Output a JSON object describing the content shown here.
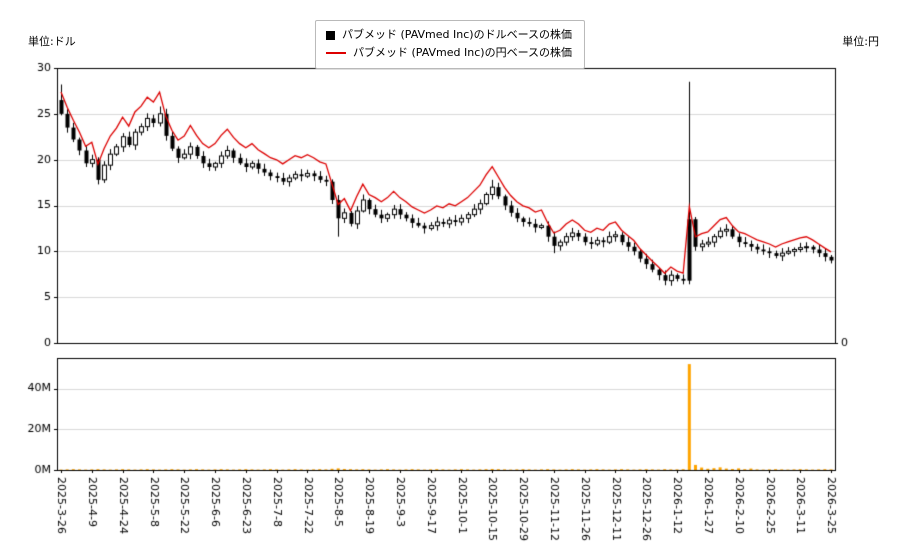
{
  "page": {
    "background": "#ffffff"
  },
  "header": {
    "left_unit_label": "単位:ドル",
    "right_unit_label": "単位:円"
  },
  "legend": {
    "items": [
      {
        "marker": "black-square",
        "color": "#000000",
        "label": "パブメッド (PAVmed Inc)のドルベースの株価"
      },
      {
        "marker": "red-line",
        "color": "#dd0000",
        "label": "パブメッド (PAVmed Inc)の円ベースの株価"
      }
    ]
  },
  "chart_data": {
    "type": "candlestick",
    "grid": {
      "on": true,
      "color": "#d9d9d9"
    },
    "legend_position": "top-center",
    "x_tick_labels": [
      "2025-3-26",
      "2025-4-9",
      "2025-4-24",
      "2025-5-8",
      "2025-5-22",
      "2025-6-6",
      "2025-6-23",
      "2025-7-8",
      "2025-7-22",
      "2025-8-5",
      "2025-8-19",
      "2025-9-3",
      "2025-9-17",
      "2025-10-1",
      "2025-10-15",
      "2025-10-29",
      "2025-11-12",
      "2025-11-26",
      "2025-12-11",
      "2025-12-26",
      "2026-1-12",
      "2026-1-27",
      "2026-2-10",
      "2026-2-25",
      "2026-3-11",
      "2026-3-25"
    ],
    "candles_per_tick": 5,
    "left_axis": {
      "unit": "ドル",
      "min": 0,
      "max": 30,
      "ticks": [
        0,
        5,
        10,
        15,
        20,
        25,
        30
      ]
    },
    "right_axis": {
      "unit": "円",
      "min": 0,
      "max": 4000,
      "ticks": [
        0,
        500,
        1000,
        1500,
        2000,
        2500,
        3000,
        3500,
        4000
      ]
    },
    "series": [
      {
        "name": "パブメッド (PAVmed Inc)のドルベースの株価",
        "type": "candlestick",
        "color": "#000000",
        "close": [
          25.0,
          23.5,
          22.2,
          21.0,
          19.6,
          20.0,
          17.8,
          19.4,
          20.6,
          21.4,
          22.5,
          21.6,
          23.0,
          23.6,
          24.5,
          24.0,
          25.0,
          22.6,
          21.2,
          20.2,
          20.6,
          21.4,
          20.4,
          19.6,
          19.2,
          19.6,
          20.4,
          21.0,
          20.2,
          19.6,
          19.2,
          19.6,
          19.0,
          18.6,
          18.2,
          18.0,
          17.6,
          18.0,
          18.4,
          18.2,
          18.5,
          18.2,
          17.8,
          17.6,
          15.6,
          13.6,
          14.2,
          13.0,
          14.4,
          15.6,
          14.6,
          14.0,
          13.6,
          14.0,
          14.6,
          14.0,
          13.6,
          13.1,
          12.8,
          12.5,
          12.8,
          13.2,
          13.0,
          13.4,
          13.2,
          13.6,
          14.0,
          14.6,
          15.2,
          16.2,
          17.0,
          16.0,
          15.0,
          14.2,
          13.6,
          13.2,
          13.0,
          12.6,
          12.8,
          11.6,
          10.6,
          11.0,
          11.6,
          12.0,
          11.6,
          11.0,
          10.8,
          11.2,
          11.0,
          11.6,
          11.8,
          11.0,
          10.5,
          10.0,
          9.2,
          8.6,
          8.0,
          7.4,
          6.8,
          7.4,
          7.0,
          6.8,
          13.5,
          10.5,
          10.8,
          11.0,
          11.6,
          12.2,
          12.4,
          11.6,
          11.0,
          10.8,
          10.5,
          10.2,
          10.0,
          9.8,
          9.5,
          9.8,
          10.0,
          10.2,
          10.4,
          10.5,
          10.2,
          9.8,
          9.4,
          9.0
        ]
      },
      {
        "name": "パブメッド (PAVmed Inc)の円ベースの株価",
        "type": "line",
        "color": "#dd0000",
        "close": [
          3650,
          3430,
          3240,
          3065,
          2860,
          2920,
          2600,
          2830,
          3010,
          3125,
          3285,
          3155,
          3360,
          3445,
          3575,
          3505,
          3650,
          3300,
          3095,
          2950,
          3010,
          3165,
          3020,
          2900,
          2840,
          2900,
          3020,
          3110,
          2990,
          2900,
          2840,
          2900,
          2810,
          2755,
          2695,
          2665,
          2605,
          2665,
          2725,
          2695,
          2740,
          2695,
          2635,
          2605,
          2310,
          2015,
          2100,
          1925,
          2130,
          2310,
          2160,
          2115,
          2055,
          2115,
          2205,
          2115,
          2055,
          1980,
          1935,
          1890,
          1935,
          1995,
          1965,
          2025,
          1995,
          2055,
          2115,
          2205,
          2295,
          2445,
          2565,
          2415,
          2265,
          2145,
          2055,
          1995,
          1965,
          1905,
          1935,
          1750,
          1600,
          1640,
          1730,
          1790,
          1730,
          1640,
          1610,
          1670,
          1640,
          1730,
          1760,
          1640,
          1565,
          1490,
          1370,
          1280,
          1190,
          1105,
          1015,
          1105,
          1045,
          1015,
          1985,
          1545,
          1590,
          1615,
          1705,
          1795,
          1825,
          1705,
          1615,
          1590,
          1545,
          1500,
          1470,
          1440,
          1395,
          1440,
          1470,
          1500,
          1530,
          1545,
          1500,
          1440,
          1380,
          1325
        ]
      }
    ],
    "high_overrides": {
      "0": 28.2,
      "16": 25.8,
      "49": 16.2,
      "70": 17.8,
      "102": 28.5
    },
    "low_overrides": {
      "6": 17.3,
      "45": 11.6,
      "80": 9.8,
      "98": 6.3,
      "101": 6.4
    },
    "filled_indices": [
      102
    ],
    "volume": {
      "color": "#ffa500",
      "axis_max": 55,
      "ticks": [
        {
          "label": "0M",
          "value": 0
        },
        {
          "label": "20M",
          "value": 20
        },
        {
          "label": "40M",
          "value": 40
        }
      ],
      "values_millions": [
        0.2,
        0.3,
        0.4,
        0.3,
        0.2,
        0.3,
        0.4,
        0.3,
        0.2,
        0.3,
        0.4,
        0.3,
        0.2,
        0.3,
        0.4,
        0.3,
        0.2,
        0.3,
        0.4,
        0.3,
        0.2,
        0.3,
        0.4,
        0.3,
        0.2,
        0.3,
        0.4,
        0.3,
        0.2,
        0.3,
        0.4,
        0.3,
        0.2,
        0.3,
        0.4,
        0.3,
        0.2,
        0.3,
        0.4,
        0.3,
        0.2,
        0.3,
        0.4,
        0.3,
        0.6,
        0.8,
        0.5,
        0.4,
        0.3,
        0.4,
        0.3,
        0.2,
        0.3,
        0.4,
        0.3,
        0.2,
        0.3,
        0.4,
        0.3,
        0.2,
        0.3,
        0.4,
        0.3,
        0.2,
        0.3,
        0.4,
        0.3,
        0.2,
        0.3,
        0.4,
        0.5,
        0.4,
        0.3,
        0.2,
        0.3,
        0.4,
        0.3,
        0.2,
        0.3,
        0.4,
        0.3,
        0.2,
        0.3,
        0.4,
        0.3,
        0.2,
        0.3,
        0.4,
        0.3,
        0.2,
        0.3,
        0.4,
        0.3,
        0.2,
        0.3,
        0.4,
        0.3,
        0.2,
        0.4,
        0.3,
        0.3,
        0.4,
        52.0,
        2.5,
        1.2,
        0.6,
        0.9,
        1.3,
        0.7,
        0.5,
        0.8,
        0.4,
        0.7,
        0.3,
        0.2,
        0.3,
        0.4,
        0.3,
        0.2,
        0.3,
        0.4,
        0.3,
        0.2,
        0.3,
        0.4,
        0.3
      ]
    }
  }
}
